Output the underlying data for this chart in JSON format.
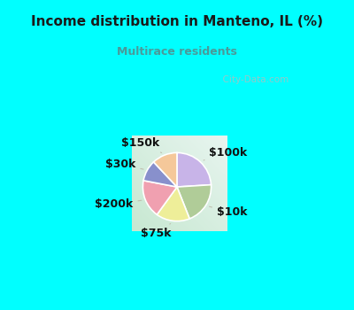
{
  "title": "Income distribution in Manteno, IL (%)",
  "subtitle": "Multirace residents",
  "title_color": "#1a1a1a",
  "subtitle_color": "#4a9a9a",
  "bg_cyan": "#00ffff",
  "labels": [
    "$100k",
    "$10k",
    "$75k",
    "$200k",
    "$30k",
    "$150k"
  ],
  "sizes": [
    24,
    20,
    16,
    18,
    10,
    12
  ],
  "colors": [
    "#c8b4e8",
    "#b0cc98",
    "#eeee99",
    "#f0a0b0",
    "#8890cc",
    "#f5c89a"
  ],
  "startangle": 90,
  "label_fontsize": 9,
  "watermark": "City-Data.com"
}
